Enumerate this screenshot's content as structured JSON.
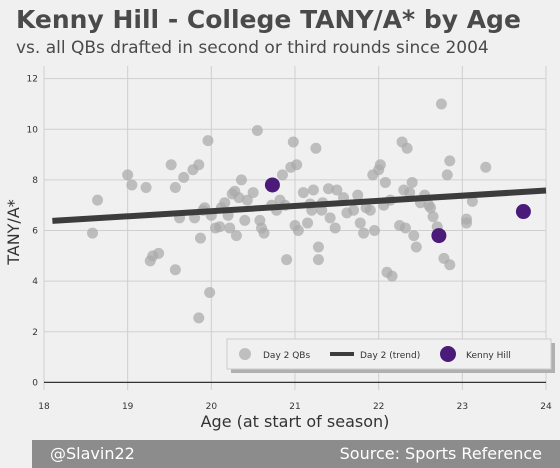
{
  "chart_data": {
    "type": "scatter",
    "title": "Kenny Hill - College TANY/A* by Age",
    "subtitle": "vs. all QBs drafted in second or third rounds since 2004",
    "xlabel": "Age (at start of season)",
    "ylabel": "TANY/A*",
    "xlim": [
      18,
      24
    ],
    "ylim": [
      -0.3,
      12.5
    ],
    "xticks": [
      18,
      19,
      20,
      21,
      22,
      23,
      24
    ],
    "yticks": [
      0,
      2,
      4,
      6,
      8,
      10,
      12
    ],
    "grid": true,
    "legend_position": "bottom-right",
    "legend": [
      "Day 2 QBs",
      "Day 2 (trend)",
      "Kenny Hill"
    ],
    "colors": {
      "day2": "#a9a9a9",
      "trend": "#3c3c3c",
      "hill": "#4b1b7a"
    },
    "day2_qbs": [
      [
        18.58,
        5.9
      ],
      [
        18.64,
        7.2
      ],
      [
        19.0,
        8.2
      ],
      [
        19.05,
        7.8
      ],
      [
        19.22,
        7.7
      ],
      [
        19.27,
        4.8
      ],
      [
        19.3,
        5.0
      ],
      [
        19.37,
        5.1
      ],
      [
        19.52,
        8.6
      ],
      [
        19.57,
        7.7
      ],
      [
        19.57,
        4.45
      ],
      [
        19.62,
        6.5
      ],
      [
        19.67,
        8.1
      ],
      [
        19.78,
        8.4
      ],
      [
        19.8,
        6.5
      ],
      [
        19.85,
        8.6
      ],
      [
        19.87,
        5.7
      ],
      [
        19.9,
        6.8
      ],
      [
        19.92,
        6.9
      ],
      [
        19.85,
        2.55
      ],
      [
        19.96,
        9.55
      ],
      [
        19.98,
        3.55
      ],
      [
        20.0,
        6.6
      ],
      [
        20.05,
        6.1
      ],
      [
        20.1,
        6.15
      ],
      [
        20.12,
        6.9
      ],
      [
        20.16,
        7.1
      ],
      [
        20.2,
        6.6
      ],
      [
        20.22,
        6.1
      ],
      [
        20.25,
        7.45
      ],
      [
        20.28,
        7.55
      ],
      [
        20.3,
        5.8
      ],
      [
        20.33,
        7.3
      ],
      [
        20.36,
        8.0
      ],
      [
        20.4,
        6.4
      ],
      [
        20.43,
        7.2
      ],
      [
        20.5,
        7.5
      ],
      [
        20.55,
        9.95
      ],
      [
        20.58,
        6.4
      ],
      [
        20.63,
        5.9
      ],
      [
        20.6,
        6.1
      ],
      [
        20.72,
        7.0
      ],
      [
        20.78,
        6.8
      ],
      [
        20.82,
        7.2
      ],
      [
        20.85,
        8.2
      ],
      [
        20.88,
        7.0
      ],
      [
        20.9,
        4.85
      ],
      [
        20.95,
        8.5
      ],
      [
        20.98,
        9.5
      ],
      [
        21.0,
        6.2
      ],
      [
        21.02,
        8.6
      ],
      [
        21.04,
        6.0
      ],
      [
        21.1,
        7.5
      ],
      [
        21.15,
        6.3
      ],
      [
        21.18,
        7.05
      ],
      [
        21.2,
        6.8
      ],
      [
        21.22,
        7.6
      ],
      [
        21.25,
        9.25
      ],
      [
        21.28,
        5.35
      ],
      [
        21.28,
        4.85
      ],
      [
        21.32,
        6.8
      ],
      [
        21.33,
        7.1
      ],
      [
        21.4,
        7.65
      ],
      [
        21.42,
        6.5
      ],
      [
        21.48,
        6.1
      ],
      [
        21.5,
        7.6
      ],
      [
        21.58,
        7.3
      ],
      [
        21.62,
        6.7
      ],
      [
        21.7,
        6.8
      ],
      [
        21.75,
        7.4
      ],
      [
        21.78,
        6.3
      ],
      [
        21.82,
        5.9
      ],
      [
        21.85,
        6.9
      ],
      [
        21.9,
        6.8
      ],
      [
        21.93,
        8.2
      ],
      [
        21.95,
        6.0
      ],
      [
        22.0,
        8.4
      ],
      [
        22.02,
        8.6
      ],
      [
        22.06,
        7.0
      ],
      [
        22.08,
        7.9
      ],
      [
        22.1,
        4.35
      ],
      [
        22.14,
        7.2
      ],
      [
        22.16,
        4.2
      ],
      [
        22.25,
        6.2
      ],
      [
        22.28,
        9.5
      ],
      [
        22.3,
        7.6
      ],
      [
        22.32,
        6.1
      ],
      [
        22.34,
        9.25
      ],
      [
        22.37,
        7.5
      ],
      [
        22.4,
        7.9
      ],
      [
        22.42,
        5.8
      ],
      [
        22.45,
        5.35
      ],
      [
        22.5,
        7.1
      ],
      [
        22.55,
        7.4
      ],
      [
        22.6,
        7.0
      ],
      [
        22.62,
        6.9
      ],
      [
        22.65,
        6.55
      ],
      [
        22.7,
        6.15
      ],
      [
        22.75,
        11.0
      ],
      [
        22.78,
        4.9
      ],
      [
        22.82,
        8.2
      ],
      [
        22.85,
        4.65
      ],
      [
        22.85,
        8.75
      ],
      [
        23.05,
        6.45
      ],
      [
        23.05,
        6.3
      ],
      [
        23.12,
        7.15
      ],
      [
        23.28,
        8.5
      ]
    ],
    "trend": {
      "x": [
        18.1,
        24.0
      ],
      "y": [
        6.38,
        7.58
      ]
    },
    "kenny_hill": [
      [
        20.73,
        7.8
      ],
      [
        22.72,
        5.8
      ],
      [
        23.73,
        6.75
      ]
    ]
  },
  "footer": {
    "left": "@Slavin22",
    "right": "Source: Sports Reference"
  }
}
